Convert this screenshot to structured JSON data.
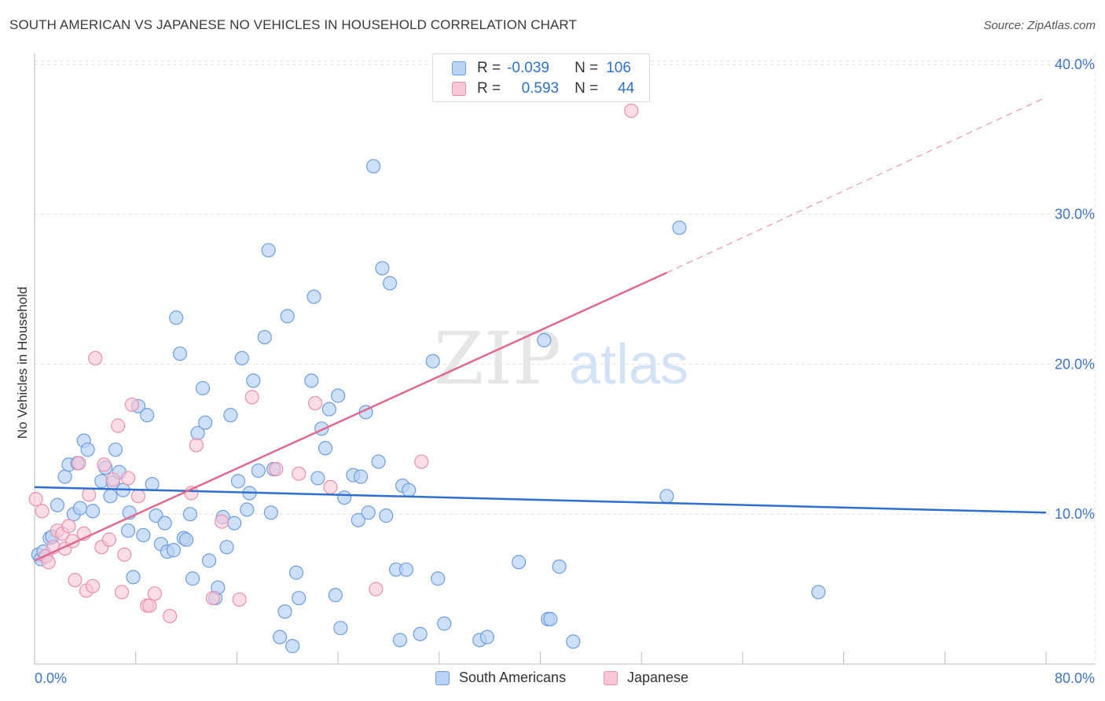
{
  "title": "SOUTH AMERICAN VS JAPANESE NO VEHICLES IN HOUSEHOLD CORRELATION CHART",
  "source": "Source: ZipAtlas.com",
  "watermark": {
    "zip": "ZIP",
    "atlas": "atlas"
  },
  "stats": [
    {
      "r_label": "R =",
      "r_value": "-0.039",
      "n_label": "N =",
      "n_value": "106"
    },
    {
      "r_label": "R =",
      "r_value": "0.593",
      "n_label": "N =",
      "n_value": "44"
    }
  ],
  "legend": [
    {
      "label": "South Americans"
    },
    {
      "label": "Japanese"
    }
  ],
  "colors": {
    "blue_fill": "#b9d2f5",
    "blue_stroke": "#6e9ee0",
    "blue_line": "#2f6fcf",
    "pink_fill": "#f8c6d6",
    "pink_stroke": "#ec8fae",
    "pink_line": "#e0698f",
    "grid": "#e3e3e3",
    "tick_label": "#3f73c9"
  },
  "chart_data": {
    "type": "scatter",
    "title": "SOUTH AMERICAN VS JAPANESE NO VEHICLES IN HOUSEHOLD CORRELATION CHART",
    "xlabel": "",
    "ylabel": "No Vehicles in Household",
    "xlim": [
      0,
      80
    ],
    "ylim": [
      0,
      40
    ],
    "x_tick_labels": [
      "0.0%",
      "80.0%"
    ],
    "y_ticks": [
      10,
      20,
      30,
      40
    ],
    "y_tick_labels": [
      "10.0%",
      "20.0%",
      "30.0%",
      "40.0%"
    ],
    "series": [
      {
        "name": "South Americans",
        "r": -0.039,
        "n": 106,
        "trend": {
          "x0": 0,
          "y0": 11.8,
          "x1": 80,
          "y1": 10.1
        },
        "points": [
          [
            0.3,
            7.3
          ],
          [
            0.5,
            7.0
          ],
          [
            0.7,
            7.5
          ],
          [
            0.9,
            7.2
          ],
          [
            1.2,
            8.4
          ],
          [
            1.4,
            8.5
          ],
          [
            1.8,
            10.6
          ],
          [
            2.4,
            12.5
          ],
          [
            2.7,
            13.3
          ],
          [
            3.1,
            10.0
          ],
          [
            3.4,
            13.4
          ],
          [
            3.6,
            10.4
          ],
          [
            3.9,
            14.9
          ],
          [
            4.2,
            14.3
          ],
          [
            4.6,
            10.2
          ],
          [
            5.3,
            12.2
          ],
          [
            5.6,
            13.1
          ],
          [
            6.2,
            12.1
          ],
          [
            6.4,
            14.3
          ],
          [
            6.7,
            12.8
          ],
          [
            7.0,
            11.6
          ],
          [
            7.4,
            8.9
          ],
          [
            7.5,
            10.1
          ],
          [
            7.8,
            5.8
          ],
          [
            8.2,
            17.2
          ],
          [
            8.6,
            8.6
          ],
          [
            8.9,
            16.6
          ],
          [
            9.3,
            12.0
          ],
          [
            9.6,
            9.9
          ],
          [
            10.0,
            8.0
          ],
          [
            10.3,
            9.4
          ],
          [
            10.5,
            7.5
          ],
          [
            11.0,
            7.6
          ],
          [
            11.2,
            23.1
          ],
          [
            11.5,
            20.7
          ],
          [
            11.8,
            8.4
          ],
          [
            12.0,
            8.3
          ],
          [
            12.3,
            10.0
          ],
          [
            12.5,
            5.7
          ],
          [
            12.9,
            15.4
          ],
          [
            13.3,
            18.4
          ],
          [
            13.5,
            16.1
          ],
          [
            13.8,
            6.9
          ],
          [
            14.3,
            4.4
          ],
          [
            14.5,
            5.1
          ],
          [
            14.9,
            9.8
          ],
          [
            15.2,
            7.8
          ],
          [
            15.5,
            16.6
          ],
          [
            15.8,
            9.4
          ],
          [
            16.1,
            12.2
          ],
          [
            16.4,
            20.4
          ],
          [
            16.8,
            10.3
          ],
          [
            17.0,
            11.4
          ],
          [
            17.3,
            18.9
          ],
          [
            17.7,
            12.9
          ],
          [
            18.2,
            21.8
          ],
          [
            18.5,
            27.6
          ],
          [
            18.7,
            10.1
          ],
          [
            18.9,
            13.0
          ],
          [
            19.4,
            1.8
          ],
          [
            19.8,
            3.5
          ],
          [
            20.0,
            23.2
          ],
          [
            20.4,
            1.2
          ],
          [
            20.7,
            6.1
          ],
          [
            20.9,
            4.4
          ],
          [
            21.9,
            18.9
          ],
          [
            22.1,
            24.5
          ],
          [
            22.4,
            12.4
          ],
          [
            22.7,
            15.7
          ],
          [
            23.0,
            14.4
          ],
          [
            23.3,
            17.0
          ],
          [
            23.8,
            4.6
          ],
          [
            24.0,
            17.9
          ],
          [
            24.2,
            2.4
          ],
          [
            24.5,
            11.1
          ],
          [
            25.2,
            12.6
          ],
          [
            25.6,
            9.6
          ],
          [
            25.8,
            12.5
          ],
          [
            26.2,
            16.8
          ],
          [
            26.4,
            10.1
          ],
          [
            26.8,
            33.2
          ],
          [
            27.2,
            13.5
          ],
          [
            27.5,
            26.4
          ],
          [
            27.8,
            9.9
          ],
          [
            28.1,
            25.4
          ],
          [
            28.6,
            6.3
          ],
          [
            28.9,
            1.6
          ],
          [
            29.1,
            11.9
          ],
          [
            29.4,
            6.3
          ],
          [
            29.6,
            11.6
          ],
          [
            30.5,
            2.0
          ],
          [
            31.5,
            20.2
          ],
          [
            31.9,
            5.7
          ],
          [
            32.4,
            2.7
          ],
          [
            35.2,
            1.6
          ],
          [
            35.8,
            1.8
          ],
          [
            38.3,
            6.8
          ],
          [
            40.3,
            21.6
          ],
          [
            40.6,
            3.0
          ],
          [
            40.8,
            3.0
          ],
          [
            41.5,
            6.5
          ],
          [
            42.6,
            1.5
          ],
          [
            50.0,
            11.2
          ],
          [
            51.0,
            29.1
          ],
          [
            62.0,
            4.8
          ],
          [
            6.0,
            11.2
          ]
        ]
      },
      {
        "name": "Japanese",
        "r": 0.593,
        "n": 44,
        "trend": {
          "x0": 0,
          "y0": 6.9,
          "x1": 50,
          "y1": 26.1,
          "dash_x1": 80,
          "dash_y1": 37.8
        },
        "points": [
          [
            0.1,
            11.0
          ],
          [
            0.6,
            10.2
          ],
          [
            0.9,
            7.2
          ],
          [
            1.1,
            6.8
          ],
          [
            1.5,
            7.8
          ],
          [
            1.8,
            8.9
          ],
          [
            2.2,
            8.7
          ],
          [
            2.4,
            7.7
          ],
          [
            2.7,
            9.2
          ],
          [
            3.0,
            8.2
          ],
          [
            3.2,
            5.6
          ],
          [
            3.5,
            13.4
          ],
          [
            3.9,
            8.7
          ],
          [
            4.1,
            4.9
          ],
          [
            4.3,
            11.3
          ],
          [
            4.6,
            5.2
          ],
          [
            4.8,
            20.4
          ],
          [
            5.3,
            7.8
          ],
          [
            5.5,
            13.3
          ],
          [
            5.9,
            8.3
          ],
          [
            6.2,
            12.3
          ],
          [
            6.6,
            15.9
          ],
          [
            6.9,
            4.8
          ],
          [
            7.1,
            7.3
          ],
          [
            7.4,
            12.4
          ],
          [
            7.7,
            17.3
          ],
          [
            8.2,
            11.2
          ],
          [
            8.9,
            3.9
          ],
          [
            9.1,
            3.9
          ],
          [
            9.5,
            4.7
          ],
          [
            10.7,
            3.2
          ],
          [
            12.4,
            11.4
          ],
          [
            12.8,
            14.6
          ],
          [
            14.1,
            4.4
          ],
          [
            14.8,
            9.5
          ],
          [
            16.2,
            4.3
          ],
          [
            17.2,
            17.8
          ],
          [
            19.1,
            13.0
          ],
          [
            20.9,
            12.7
          ],
          [
            22.2,
            17.4
          ],
          [
            23.4,
            11.8
          ],
          [
            30.6,
            13.5
          ],
          [
            47.2,
            36.9
          ],
          [
            27.0,
            5.0
          ]
        ]
      }
    ]
  }
}
